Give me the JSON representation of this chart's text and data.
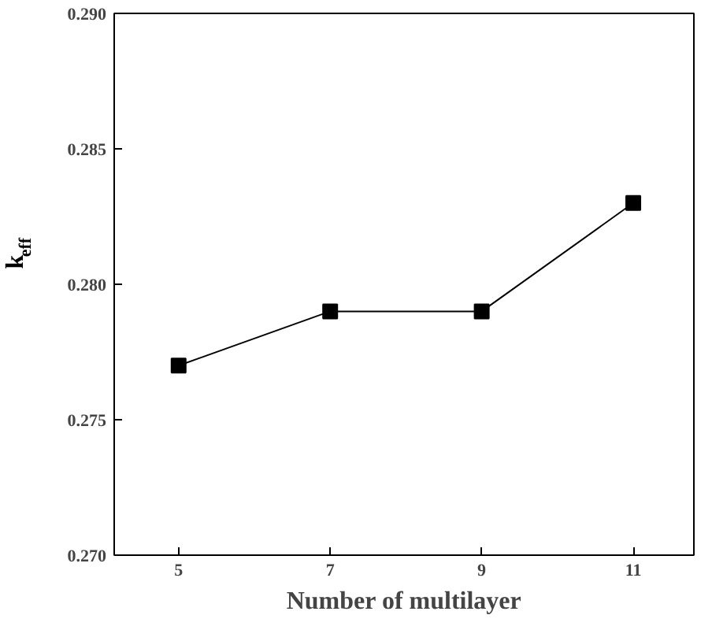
{
  "chart_data": {
    "type": "line",
    "xlabel": "Number of multilayer",
    "ylabel": "k$_{eff}$",
    "x": [
      5,
      7,
      9,
      11
    ],
    "series": [
      {
        "color": "#000000",
        "values": [
          0.277,
          0.279,
          0.279,
          0.283
        ]
      }
    ],
    "xlim": [
      4.15,
      11.8
    ],
    "xticks": [
      5,
      7,
      9,
      11
    ],
    "ylim": [
      0.27,
      0.29
    ],
    "yticks": [
      {
        "value": 0.27,
        "label": "0.270"
      },
      {
        "value": 0.275,
        "label": "0.275"
      },
      {
        "value": 0.28,
        "label": "0.280"
      },
      {
        "value": 0.285,
        "label": "0.285"
      },
      {
        "value": 0.29,
        "label": "0.290"
      }
    ],
    "marker": "square",
    "grid": false,
    "line_style": "solid"
  }
}
